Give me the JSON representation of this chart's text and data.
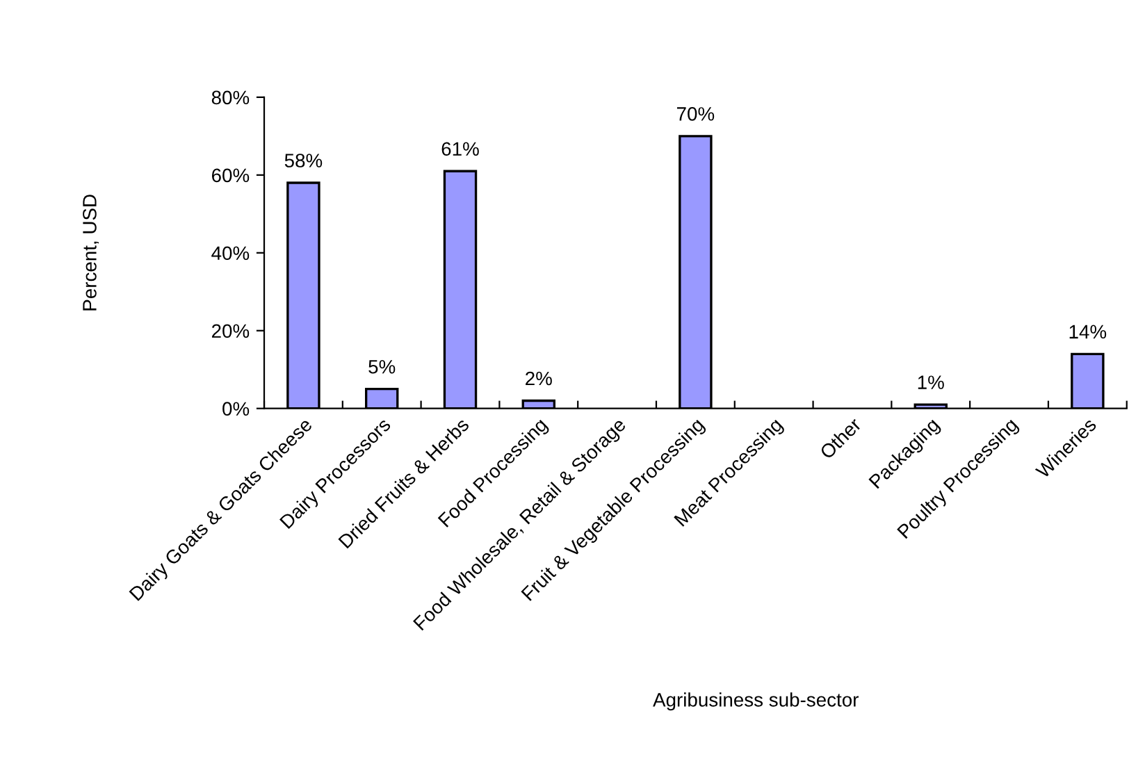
{
  "chart_data": {
    "type": "bar",
    "xlabel": "Agribusiness sub-sector",
    "ylabel": "Percent, USD",
    "categories": [
      "Dairy Goats & Goats Cheese",
      "Dairy Processors",
      "Dried Fruits & Herbs",
      "Food Processing",
      "Food Wholesale, Retail & Storage",
      "Fruit & Vegetable Processing",
      "Meat Processing",
      "Other",
      "Packaging",
      "Poultry Processing",
      "Wineries"
    ],
    "values": [
      58,
      5,
      61,
      2,
      null,
      70,
      null,
      null,
      1,
      null,
      14
    ],
    "value_labels": [
      "58%",
      "5%",
      "61%",
      "2%",
      null,
      "70%",
      null,
      null,
      "1%",
      null,
      "14%"
    ],
    "color": "#9999ff",
    "ylim": [
      0,
      80
    ],
    "yticks": [
      {
        "value": 0,
        "label": "0%"
      },
      {
        "value": 20,
        "label": "20%"
      },
      {
        "value": 40,
        "label": "40%"
      },
      {
        "value": 60,
        "label": "60%"
      },
      {
        "value": 80,
        "label": "80%"
      }
    ],
    "grid": false,
    "legend": false
  }
}
